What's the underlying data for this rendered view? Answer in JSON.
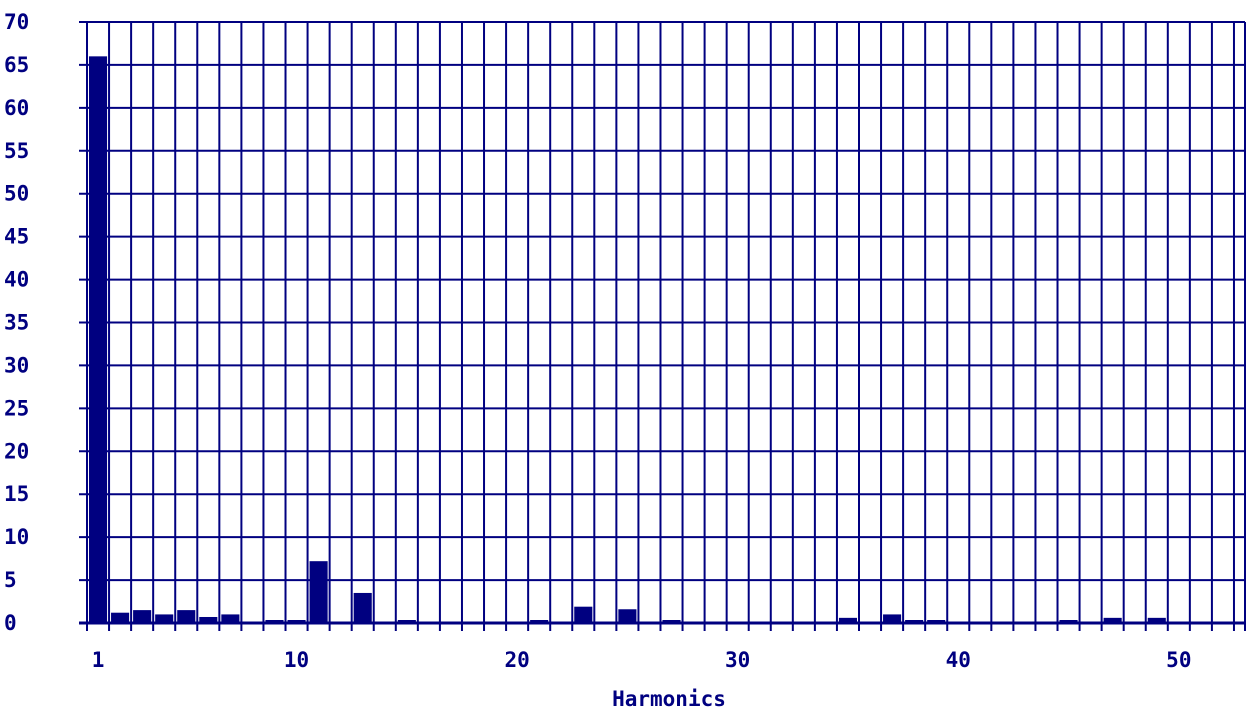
{
  "chart_data": {
    "type": "bar",
    "title": "",
    "xlabel": "Harmonics",
    "ylabel": "",
    "ylim": [
      0,
      70
    ],
    "xlim": [
      0.5,
      53
    ],
    "grid": true,
    "bar_color": "#000080",
    "grid_color": "#000080",
    "y_ticks": [
      "0",
      "5",
      "10",
      "15",
      "20",
      "25",
      "30",
      "35",
      "40",
      "45",
      "50",
      "55",
      "60",
      "65",
      "70"
    ],
    "x_ticks": [
      {
        "value": 1,
        "label": "1"
      },
      {
        "value": 10,
        "label": "10"
      },
      {
        "value": 20,
        "label": "20"
      },
      {
        "value": 30,
        "label": "30"
      },
      {
        "value": 40,
        "label": "40"
      },
      {
        "value": 50,
        "label": "50"
      }
    ],
    "series": [
      {
        "x": [
          1,
          2,
          3,
          4,
          5,
          6,
          7,
          8,
          9,
          10,
          11,
          12,
          13,
          14,
          15,
          16,
          17,
          18,
          19,
          20,
          21,
          22,
          23,
          24,
          25,
          26,
          27,
          28,
          29,
          30,
          31,
          32,
          33,
          34,
          35,
          36,
          37,
          38,
          39,
          40,
          41,
          42,
          43,
          44,
          45,
          46,
          47,
          48,
          49,
          50
        ],
        "values": [
          66,
          1.2,
          1.5,
          1.0,
          1.5,
          0.7,
          1.0,
          0,
          0.3,
          0.3,
          7.2,
          0,
          3.5,
          0,
          0.3,
          0,
          0,
          0,
          0,
          0,
          0.3,
          0,
          1.9,
          0,
          1.6,
          0,
          0.3,
          0,
          0,
          0,
          0,
          0,
          0,
          0,
          0.6,
          0,
          1.0,
          0.3,
          0.3,
          0,
          0,
          0,
          0,
          0,
          0.3,
          0,
          0.6,
          0,
          0.6,
          0
        ]
      }
    ]
  }
}
